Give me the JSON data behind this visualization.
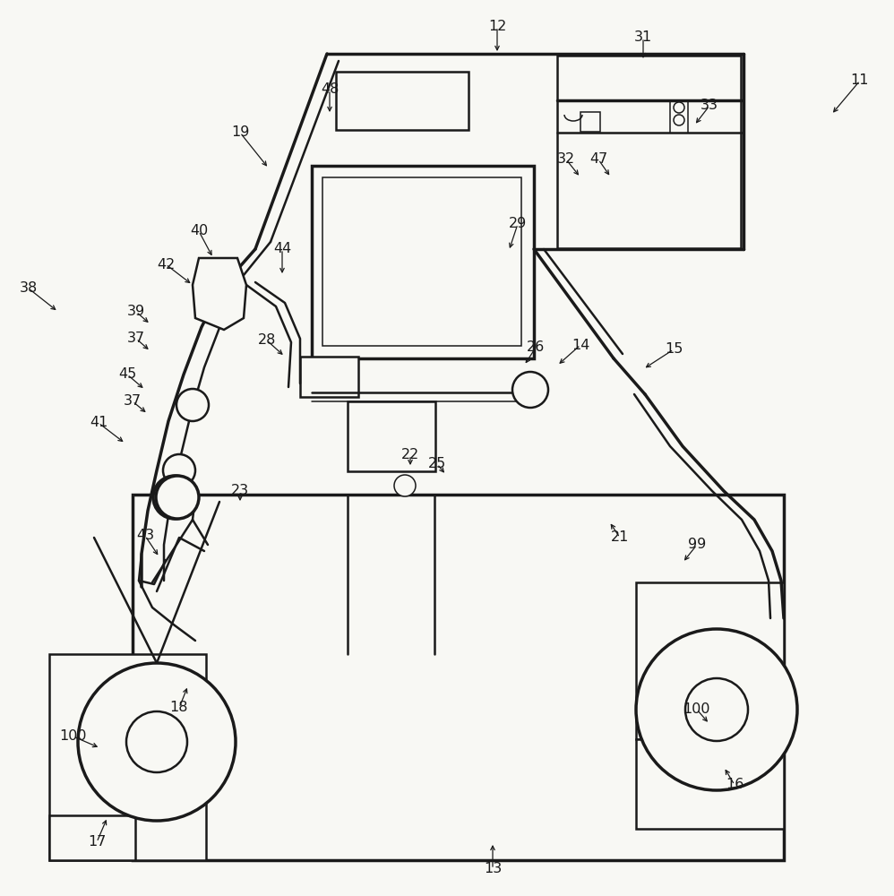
{
  "bg": "#f8f8f4",
  "lc": "#1a1a1a",
  "lw_hv": 2.5,
  "lw_md": 1.8,
  "lw_th": 1.1,
  "fs": 11.5,
  "labels": [
    [
      "11",
      960,
      90,
      928,
      128
    ],
    [
      "12",
      555,
      30,
      555,
      60
    ],
    [
      "13",
      550,
      970,
      550,
      940
    ],
    [
      "14",
      648,
      385,
      622,
      408
    ],
    [
      "15",
      752,
      390,
      718,
      412
    ],
    [
      "16",
      820,
      876,
      808,
      856
    ],
    [
      "17",
      108,
      940,
      120,
      912
    ],
    [
      "18",
      200,
      790,
      210,
      765
    ],
    [
      "19",
      268,
      148,
      300,
      188
    ],
    [
      "21",
      692,
      600,
      680,
      582
    ],
    [
      "22",
      458,
      508,
      458,
      522
    ],
    [
      "23",
      268,
      548,
      268,
      562
    ],
    [
      "25",
      488,
      518,
      498,
      530
    ],
    [
      "26",
      598,
      388,
      585,
      408
    ],
    [
      "28",
      298,
      380,
      318,
      398
    ],
    [
      "29",
      578,
      250,
      568,
      280
    ],
    [
      "31",
      718,
      42,
      718,
      68
    ],
    [
      "32",
      632,
      178,
      648,
      198
    ],
    [
      "33",
      792,
      118,
      775,
      140
    ],
    [
      "37",
      152,
      378,
      168,
      392
    ],
    [
      "37",
      148,
      448,
      165,
      462
    ],
    [
      "38",
      32,
      322,
      65,
      348
    ],
    [
      "39",
      152,
      348,
      168,
      362
    ],
    [
      "40",
      222,
      258,
      238,
      288
    ],
    [
      "41",
      110,
      472,
      140,
      495
    ],
    [
      "42",
      185,
      295,
      215,
      318
    ],
    [
      "43",
      162,
      598,
      178,
      622
    ],
    [
      "44",
      315,
      278,
      315,
      308
    ],
    [
      "45",
      142,
      418,
      162,
      435
    ],
    [
      "47",
      668,
      178,
      682,
      198
    ],
    [
      "48",
      368,
      100,
      368,
      128
    ],
    [
      "99",
      778,
      608,
      762,
      628
    ],
    [
      "100",
      82,
      822,
      112,
      835
    ],
    [
      "100",
      778,
      792,
      792,
      808
    ]
  ]
}
